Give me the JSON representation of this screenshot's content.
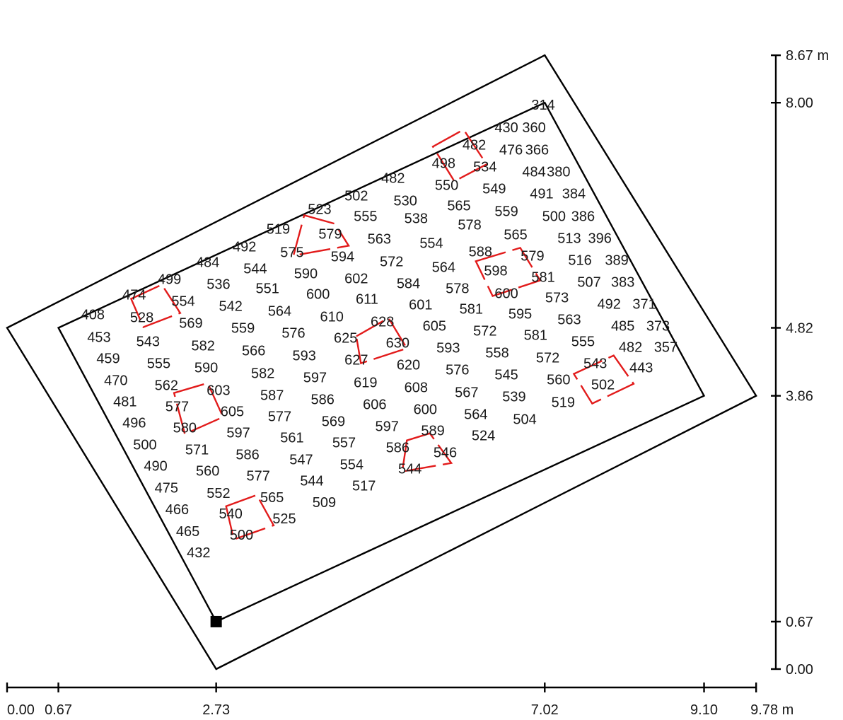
{
  "x_axis": {
    "unit": "m",
    "ticks": [
      {
        "value": 0.0,
        "label": "0.00"
      },
      {
        "value": 0.67,
        "label": "0.67"
      },
      {
        "value": 2.73,
        "label": "2.73"
      },
      {
        "value": 7.02,
        "label": "7.02"
      },
      {
        "value": 9.1,
        "label": "9.10"
      },
      {
        "value": 9.78,
        "label": "9.78 m"
      }
    ]
  },
  "y_axis": {
    "unit": "m",
    "ticks": [
      {
        "value": 0.0,
        "label": "0.00"
      },
      {
        "value": 0.67,
        "label": "0.67"
      },
      {
        "value": 3.86,
        "label": "3.86"
      },
      {
        "value": 4.82,
        "label": "4.82"
      },
      {
        "value": 8.0,
        "label": "8.00"
      },
      {
        "value": 8.67,
        "label": "8.67 m"
      }
    ]
  },
  "outer_boundary": [
    [
      0.0,
      4.82
    ],
    [
      7.02,
      8.67
    ],
    [
      9.78,
      3.86
    ],
    [
      2.73,
      0.0
    ]
  ],
  "inner_boundary": [
    [
      0.67,
      4.82
    ],
    [
      7.02,
      8.0
    ],
    [
      9.1,
      3.86
    ],
    [
      2.73,
      0.67
    ]
  ],
  "origin_marker": [
    2.73,
    0.67
  ],
  "measurement_values": [
    {
      "text": "314",
      "x": 7.0,
      "y": 7.97
    },
    {
      "text": "430",
      "x": 6.52,
      "y": 7.65
    },
    {
      "text": "360",
      "x": 6.88,
      "y": 7.65
    },
    {
      "text": "476",
      "x": 6.58,
      "y": 7.34
    },
    {
      "text": "366",
      "x": 6.92,
      "y": 7.34
    },
    {
      "text": "482",
      "x": 6.1,
      "y": 7.41
    },
    {
      "text": "534",
      "x": 6.24,
      "y": 7.1
    },
    {
      "text": "498",
      "x": 5.7,
      "y": 7.15
    },
    {
      "text": "550",
      "x": 5.74,
      "y": 6.84
    },
    {
      "text": "549",
      "x": 6.36,
      "y": 6.79
    },
    {
      "text": "484",
      "x": 6.88,
      "y": 7.03
    },
    {
      "text": "380",
      "x": 7.2,
      "y": 7.03
    },
    {
      "text": "482",
      "x": 5.04,
      "y": 6.94
    },
    {
      "text": "530",
      "x": 5.2,
      "y": 6.62
    },
    {
      "text": "565",
      "x": 5.9,
      "y": 6.55
    },
    {
      "text": "559",
      "x": 6.52,
      "y": 6.47
    },
    {
      "text": "491",
      "x": 6.98,
      "y": 6.72
    },
    {
      "text": "384",
      "x": 7.4,
      "y": 6.72
    },
    {
      "text": "500",
      "x": 7.14,
      "y": 6.4
    },
    {
      "text": "386",
      "x": 7.52,
      "y": 6.4
    },
    {
      "text": "502",
      "x": 4.56,
      "y": 6.69
    },
    {
      "text": "555",
      "x": 4.68,
      "y": 6.4
    },
    {
      "text": "538",
      "x": 5.34,
      "y": 6.37
    },
    {
      "text": "578",
      "x": 6.04,
      "y": 6.28
    },
    {
      "text": "565",
      "x": 6.64,
      "y": 6.14
    },
    {
      "text": "513",
      "x": 7.34,
      "y": 6.09
    },
    {
      "text": "396",
      "x": 7.74,
      "y": 6.09
    },
    {
      "text": "523",
      "x": 4.08,
      "y": 6.5
    },
    {
      "text": "519",
      "x": 3.54,
      "y": 6.22
    },
    {
      "text": "579",
      "x": 4.22,
      "y": 6.15
    },
    {
      "text": "563",
      "x": 4.86,
      "y": 6.08
    },
    {
      "text": "554",
      "x": 5.54,
      "y": 6.02
    },
    {
      "text": "588",
      "x": 6.18,
      "y": 5.9
    },
    {
      "text": "579",
      "x": 6.86,
      "y": 5.84
    },
    {
      "text": "516",
      "x": 7.48,
      "y": 5.78
    },
    {
      "text": "389",
      "x": 7.96,
      "y": 5.78
    },
    {
      "text": "492",
      "x": 3.1,
      "y": 5.97
    },
    {
      "text": "575",
      "x": 3.72,
      "y": 5.89
    },
    {
      "text": "594",
      "x": 4.38,
      "y": 5.83
    },
    {
      "text": "572",
      "x": 5.02,
      "y": 5.76
    },
    {
      "text": "564",
      "x": 5.7,
      "y": 5.68
    },
    {
      "text": "598",
      "x": 6.38,
      "y": 5.63
    },
    {
      "text": "581",
      "x": 7.0,
      "y": 5.54
    },
    {
      "text": "507",
      "x": 7.6,
      "y": 5.47
    },
    {
      "text": "383",
      "x": 8.04,
      "y": 5.47
    },
    {
      "text": "484",
      "x": 2.62,
      "y": 5.75
    },
    {
      "text": "544",
      "x": 3.24,
      "y": 5.66
    },
    {
      "text": "590",
      "x": 3.9,
      "y": 5.59
    },
    {
      "text": "602",
      "x": 4.56,
      "y": 5.52
    },
    {
      "text": "584",
      "x": 5.24,
      "y": 5.45
    },
    {
      "text": "578",
      "x": 5.88,
      "y": 5.38
    },
    {
      "text": "600",
      "x": 6.52,
      "y": 5.31
    },
    {
      "text": "573",
      "x": 7.18,
      "y": 5.25
    },
    {
      "text": "492",
      "x": 7.86,
      "y": 5.16
    },
    {
      "text": "371",
      "x": 8.32,
      "y": 5.16
    },
    {
      "text": "499",
      "x": 2.12,
      "y": 5.51
    },
    {
      "text": "536",
      "x": 2.76,
      "y": 5.44
    },
    {
      "text": "551",
      "x": 3.4,
      "y": 5.38
    },
    {
      "text": "600",
      "x": 4.06,
      "y": 5.3
    },
    {
      "text": "611",
      "x": 4.7,
      "y": 5.23
    },
    {
      "text": "601",
      "x": 5.4,
      "y": 5.15
    },
    {
      "text": "581",
      "x": 6.06,
      "y": 5.09
    },
    {
      "text": "595",
      "x": 6.7,
      "y": 5.02
    },
    {
      "text": "563",
      "x": 7.34,
      "y": 4.94
    },
    {
      "text": "485",
      "x": 8.04,
      "y": 4.85
    },
    {
      "text": "373",
      "x": 8.5,
      "y": 4.85
    },
    {
      "text": "474",
      "x": 1.66,
      "y": 5.29
    },
    {
      "text": "554",
      "x": 2.3,
      "y": 5.2
    },
    {
      "text": "542",
      "x": 2.92,
      "y": 5.13
    },
    {
      "text": "564",
      "x": 3.56,
      "y": 5.06
    },
    {
      "text": "610",
      "x": 4.24,
      "y": 4.98
    },
    {
      "text": "628",
      "x": 4.9,
      "y": 4.91
    },
    {
      "text": "605",
      "x": 5.58,
      "y": 4.85
    },
    {
      "text": "572",
      "x": 6.24,
      "y": 4.78
    },
    {
      "text": "581",
      "x": 6.9,
      "y": 4.72
    },
    {
      "text": "555",
      "x": 7.52,
      "y": 4.63
    },
    {
      "text": "482",
      "x": 8.14,
      "y": 4.55
    },
    {
      "text": "357",
      "x": 8.6,
      "y": 4.55
    },
    {
      "text": "408",
      "x": 1.12,
      "y": 5.01
    },
    {
      "text": "528",
      "x": 1.76,
      "y": 4.97
    },
    {
      "text": "569",
      "x": 2.4,
      "y": 4.89
    },
    {
      "text": "559",
      "x": 3.08,
      "y": 4.82
    },
    {
      "text": "576",
      "x": 3.74,
      "y": 4.75
    },
    {
      "text": "625",
      "x": 4.42,
      "y": 4.68
    },
    {
      "text": "630",
      "x": 5.1,
      "y": 4.61
    },
    {
      "text": "593",
      "x": 5.76,
      "y": 4.54
    },
    {
      "text": "558",
      "x": 6.4,
      "y": 4.47
    },
    {
      "text": "572",
      "x": 7.06,
      "y": 4.4
    },
    {
      "text": "543",
      "x": 7.68,
      "y": 4.32
    },
    {
      "text": "443",
      "x": 8.28,
      "y": 4.26
    },
    {
      "text": "453",
      "x": 1.2,
      "y": 4.69
    },
    {
      "text": "543",
      "x": 1.84,
      "y": 4.63
    },
    {
      "text": "582",
      "x": 2.56,
      "y": 4.57
    },
    {
      "text": "566",
      "x": 3.22,
      "y": 4.5
    },
    {
      "text": "593",
      "x": 3.88,
      "y": 4.43
    },
    {
      "text": "627",
      "x": 4.56,
      "y": 4.37
    },
    {
      "text": "620",
      "x": 5.24,
      "y": 4.3
    },
    {
      "text": "576",
      "x": 5.88,
      "y": 4.23
    },
    {
      "text": "545",
      "x": 6.52,
      "y": 4.16
    },
    {
      "text": "560",
      "x": 7.2,
      "y": 4.09
    },
    {
      "text": "502",
      "x": 7.78,
      "y": 4.02
    },
    {
      "text": "459",
      "x": 1.32,
      "y": 4.39
    },
    {
      "text": "555",
      "x": 1.98,
      "y": 4.32
    },
    {
      "text": "590",
      "x": 2.6,
      "y": 4.26
    },
    {
      "text": "582",
      "x": 3.34,
      "y": 4.18
    },
    {
      "text": "597",
      "x": 4.02,
      "y": 4.12
    },
    {
      "text": "619",
      "x": 4.68,
      "y": 4.05
    },
    {
      "text": "608",
      "x": 5.34,
      "y": 3.98
    },
    {
      "text": "567",
      "x": 6.0,
      "y": 3.91
    },
    {
      "text": "539",
      "x": 6.62,
      "y": 3.85
    },
    {
      "text": "519",
      "x": 7.26,
      "y": 3.77
    },
    {
      "text": "470",
      "x": 1.42,
      "y": 4.08
    },
    {
      "text": "562",
      "x": 2.08,
      "y": 4.01
    },
    {
      "text": "603",
      "x": 2.76,
      "y": 3.94
    },
    {
      "text": "587",
      "x": 3.46,
      "y": 3.87
    },
    {
      "text": "586",
      "x": 4.12,
      "y": 3.81
    },
    {
      "text": "606",
      "x": 4.8,
      "y": 3.74
    },
    {
      "text": "600",
      "x": 5.46,
      "y": 3.67
    },
    {
      "text": "564",
      "x": 6.12,
      "y": 3.6
    },
    {
      "text": "504",
      "x": 6.76,
      "y": 3.53
    },
    {
      "text": "481",
      "x": 1.54,
      "y": 3.78
    },
    {
      "text": "577",
      "x": 2.22,
      "y": 3.71
    },
    {
      "text": "605",
      "x": 2.94,
      "y": 3.64
    },
    {
      "text": "577",
      "x": 3.56,
      "y": 3.57
    },
    {
      "text": "569",
      "x": 4.26,
      "y": 3.5
    },
    {
      "text": "597",
      "x": 4.96,
      "y": 3.43
    },
    {
      "text": "589",
      "x": 5.56,
      "y": 3.37
    },
    {
      "text": "524",
      "x": 6.22,
      "y": 3.3
    },
    {
      "text": "496",
      "x": 1.66,
      "y": 3.48
    },
    {
      "text": "580",
      "x": 2.32,
      "y": 3.41
    },
    {
      "text": "597",
      "x": 3.02,
      "y": 3.34
    },
    {
      "text": "561",
      "x": 3.72,
      "y": 3.27
    },
    {
      "text": "557",
      "x": 4.4,
      "y": 3.2
    },
    {
      "text": "586",
      "x": 5.1,
      "y": 3.13
    },
    {
      "text": "546",
      "x": 5.72,
      "y": 3.06
    },
    {
      "text": "500",
      "x": 1.8,
      "y": 3.17
    },
    {
      "text": "571",
      "x": 2.48,
      "y": 3.1
    },
    {
      "text": "586",
      "x": 3.14,
      "y": 3.03
    },
    {
      "text": "547",
      "x": 3.84,
      "y": 2.96
    },
    {
      "text": "554",
      "x": 4.5,
      "y": 2.89
    },
    {
      "text": "544",
      "x": 5.26,
      "y": 2.83
    },
    {
      "text": "490",
      "x": 1.94,
      "y": 2.87
    },
    {
      "text": "560",
      "x": 2.62,
      "y": 2.8
    },
    {
      "text": "577",
      "x": 3.28,
      "y": 2.73
    },
    {
      "text": "544",
      "x": 3.98,
      "y": 2.66
    },
    {
      "text": "517",
      "x": 4.66,
      "y": 2.59
    },
    {
      "text": "475",
      "x": 2.08,
      "y": 2.56
    },
    {
      "text": "552",
      "x": 2.76,
      "y": 2.49
    },
    {
      "text": "565",
      "x": 3.46,
      "y": 2.43
    },
    {
      "text": "509",
      "x": 4.14,
      "y": 2.36
    },
    {
      "text": "466",
      "x": 2.22,
      "y": 2.26
    },
    {
      "text": "540",
      "x": 2.92,
      "y": 2.2
    },
    {
      "text": "525",
      "x": 3.62,
      "y": 2.13
    },
    {
      "text": "465",
      "x": 2.36,
      "y": 1.95
    },
    {
      "text": "500",
      "x": 3.06,
      "y": 1.9
    },
    {
      "text": "432",
      "x": 2.5,
      "y": 1.65
    }
  ],
  "marked_groups": [
    {
      "corners": [
        [
          5.56,
          7.38
        ],
        [
          5.96,
          7.62
        ],
        [
          6.26,
          7.13
        ],
        [
          5.84,
          6.89
        ]
      ]
    },
    {
      "corners": [
        [
          3.88,
          6.41
        ],
        [
          4.28,
          6.29
        ],
        [
          4.46,
          5.98
        ],
        [
          3.74,
          5.84
        ]
      ]
    },
    {
      "corners": [
        [
          6.12,
          5.76
        ],
        [
          6.7,
          5.95
        ],
        [
          6.96,
          5.49
        ],
        [
          6.34,
          5.27
        ]
      ]
    },
    {
      "corners": [
        [
          1.62,
          5.23
        ],
        [
          2.02,
          5.43
        ],
        [
          2.26,
          5.03
        ],
        [
          1.78,
          4.83
        ]
      ]
    },
    {
      "corners": [
        [
          4.56,
          4.7
        ],
        [
          4.98,
          4.96
        ],
        [
          5.22,
          4.53
        ],
        [
          4.62,
          4.32
        ]
      ]
    },
    {
      "corners": [
        [
          7.4,
          4.17
        ],
        [
          7.92,
          4.43
        ],
        [
          8.18,
          4.03
        ],
        [
          7.64,
          3.75
        ]
      ]
    },
    {
      "corners": [
        [
          2.18,
          3.9
        ],
        [
          2.62,
          4.04
        ],
        [
          2.82,
          3.56
        ],
        [
          2.32,
          3.32
        ]
      ]
    },
    {
      "corners": [
        [
          5.22,
          3.23
        ],
        [
          5.52,
          3.33
        ],
        [
          5.8,
          2.91
        ],
        [
          5.16,
          2.79
        ]
      ]
    },
    {
      "corners": [
        [
          2.86,
          2.3
        ],
        [
          3.26,
          2.46
        ],
        [
          3.48,
          2.03
        ],
        [
          2.96,
          1.83
        ]
      ]
    }
  ]
}
